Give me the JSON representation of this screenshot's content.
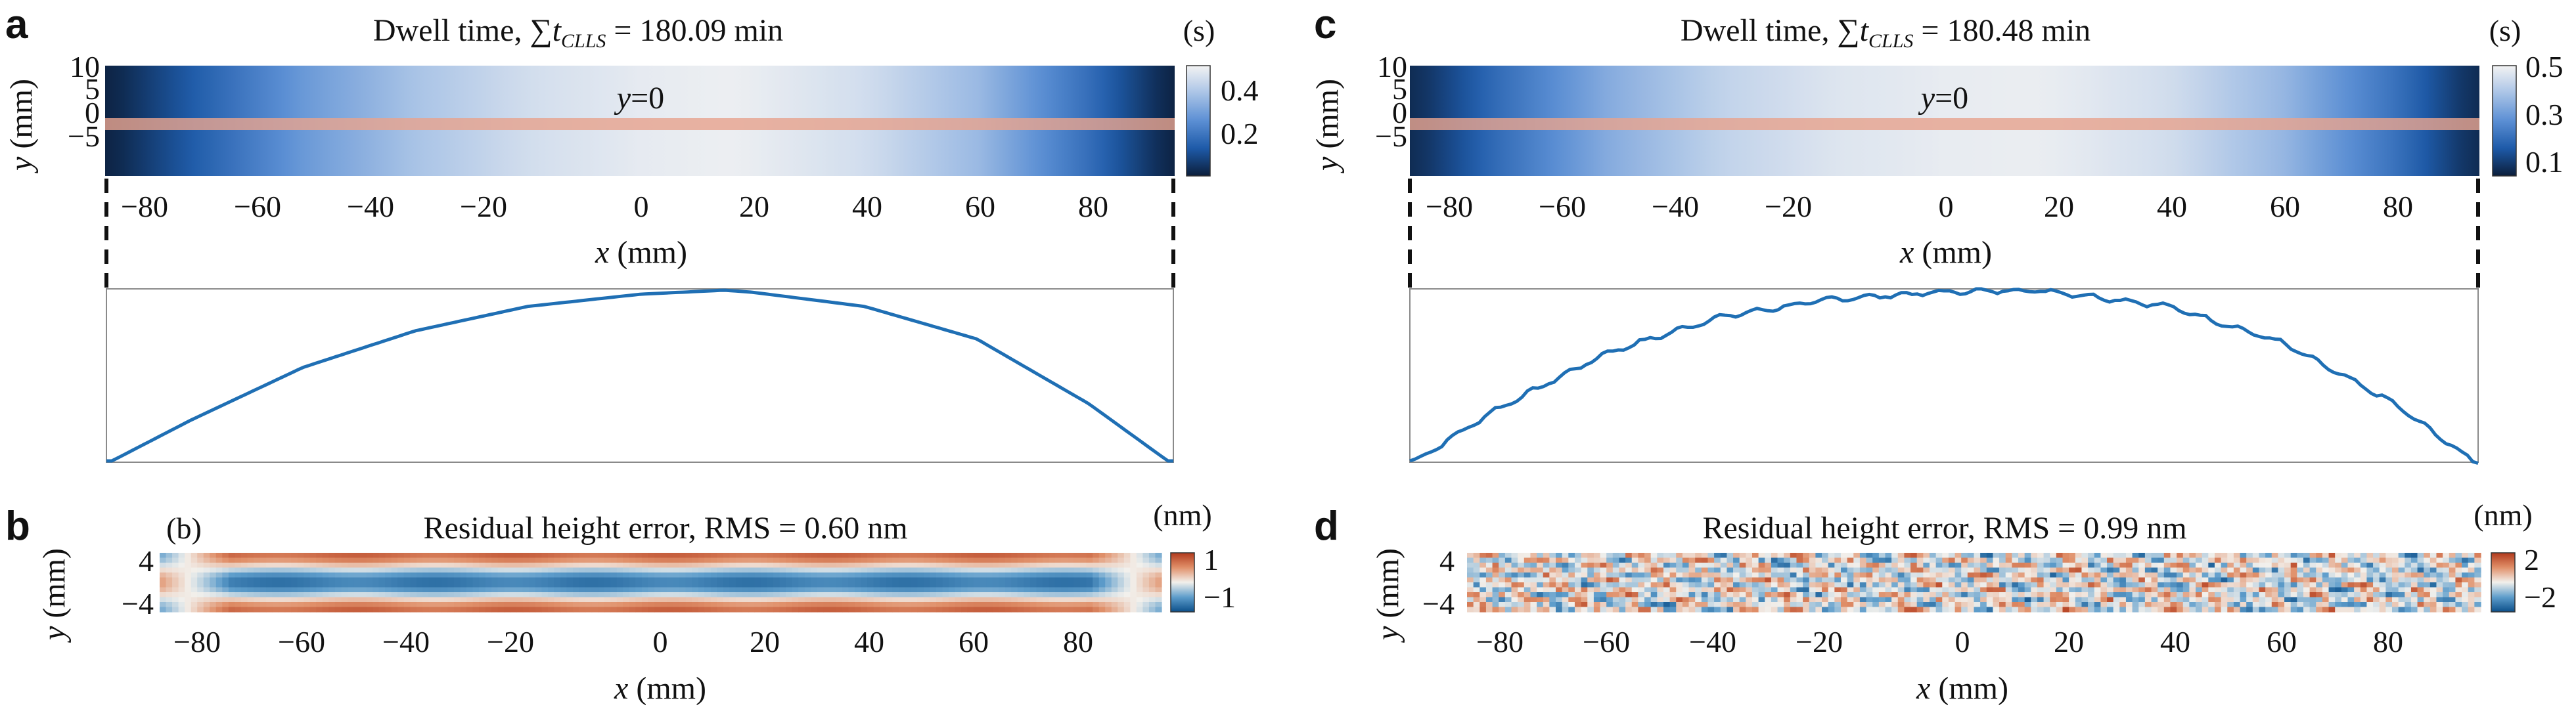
{
  "chart_data": [
    {
      "panel": "a",
      "type": "heatmap",
      "title_prefix": "Dwell time, ",
      "title_suffix": " = 180.09 min",
      "title_symbol": "∑t",
      "title_subscript": "CLLS",
      "colorbar_unit": "(s)",
      "colorbar_ticks": [
        "0.4",
        "0.2"
      ],
      "colorbar_range": [
        0.02,
        0.46
      ],
      "colormap": [
        "#0b1e3a",
        "#1e5aa8",
        "#5b8fd4",
        "#a9c3e6",
        "#f3f3f3"
      ],
      "ylabel_var": "y",
      "ylabel_unit": " (mm)",
      "yticks": [
        "10",
        "5",
        "0",
        "−5"
      ],
      "xticks": [
        "−80",
        "−60",
        "−40",
        "−20",
        "0",
        "20",
        "40",
        "60",
        "80"
      ],
      "xlabel_var": "x",
      "xlabel_unit": " (mm)",
      "line_label_var": "y",
      "line_label_value": "=0",
      "xlim": [
        -95,
        95
      ],
      "ylim": [
        -10,
        10
      ],
      "profile_at_y0": {
        "x": [
          -94,
          -80,
          -60,
          -40,
          -20,
          0,
          15,
          20,
          40,
          60,
          80,
          94
        ],
        "values": [
          0.03,
          0.13,
          0.26,
          0.35,
          0.41,
          0.44,
          0.45,
          0.445,
          0.41,
          0.33,
          0.17,
          0.03
        ],
        "color": "#1f6fb4",
        "noise": 0
      }
    },
    {
      "panel": "c",
      "type": "heatmap",
      "title_prefix": "Dwell time, ",
      "title_suffix": " = 180.48 min",
      "title_symbol": "∑t",
      "title_subscript": "CLLS",
      "colorbar_unit": "(s)",
      "colorbar_ticks": [
        "0.5",
        "0.3",
        "0.1"
      ],
      "colorbar_range": [
        0.0,
        0.52
      ],
      "colormap": [
        "#0b1e3a",
        "#1e5aa8",
        "#5b8fd4",
        "#a9c3e6",
        "#f3f3f3"
      ],
      "ylabel_var": "y",
      "ylabel_unit": " (mm)",
      "yticks": [
        "10",
        "5",
        "0",
        "−5"
      ],
      "xticks": [
        "−80",
        "−60",
        "−40",
        "−20",
        "0",
        "20",
        "40",
        "60",
        "80"
      ],
      "xlabel_var": "x",
      "xlabel_unit": " (mm)",
      "line_label_var": "y",
      "line_label_value": "=0",
      "xlim": [
        -95,
        95
      ],
      "ylim": [
        -10,
        10
      ],
      "profile_at_y0": {
        "x": [
          -94,
          -80,
          -60,
          -40,
          -20,
          0,
          15,
          20,
          40,
          60,
          80,
          94
        ],
        "values": [
          0.03,
          0.17,
          0.33,
          0.43,
          0.48,
          0.5,
          0.505,
          0.5,
          0.46,
          0.36,
          0.19,
          0.03
        ],
        "color": "#1f6fb4",
        "noise": 0.006
      }
    },
    {
      "panel": "b",
      "type": "heatmap",
      "sub_label": "(b)",
      "title": "Residual height error, RMS = 0.60 nm",
      "colorbar_unit": "(nm)",
      "colorbar_ticks": [
        "1",
        "−1"
      ],
      "colorbar_range": [
        -1.3,
        1.3
      ],
      "colormap": [
        "#0b4f8a",
        "#5e9dcb",
        "#f2f0ec",
        "#e0906a",
        "#b23a1c"
      ],
      "ylabel_var": "y",
      "ylabel_unit": " (mm)",
      "yticks": [
        "4",
        "−4"
      ],
      "xticks": [
        "−80",
        "−60",
        "−40",
        "−20",
        "0",
        "20",
        "40",
        "60",
        "80"
      ],
      "xlabel_var": "x",
      "xlabel_unit": " (mm)",
      "xlim": [
        -92,
        92
      ],
      "ylim": [
        -5,
        5
      ],
      "pattern": "bands"
    },
    {
      "panel": "d",
      "type": "heatmap",
      "title": "Residual height error, RMS = 0.99 nm",
      "colorbar_unit": "(nm)",
      "colorbar_ticks": [
        "2",
        "−2"
      ],
      "colorbar_range": [
        -2.6,
        2.6
      ],
      "colormap": [
        "#0b4f8a",
        "#5e9dcb",
        "#f2f0ec",
        "#e0906a",
        "#b23a1c"
      ],
      "ylabel_var": "y",
      "ylabel_unit": " (mm)",
      "yticks": [
        "4",
        "−4"
      ],
      "xticks": [
        "−80",
        "−60",
        "−40",
        "−20",
        "0",
        "20",
        "40",
        "60",
        "80"
      ],
      "xlabel_var": "x",
      "xlabel_unit": " (mm)",
      "xlim": [
        -92,
        92
      ],
      "ylim": [
        -5,
        5
      ],
      "pattern": "noise"
    }
  ]
}
